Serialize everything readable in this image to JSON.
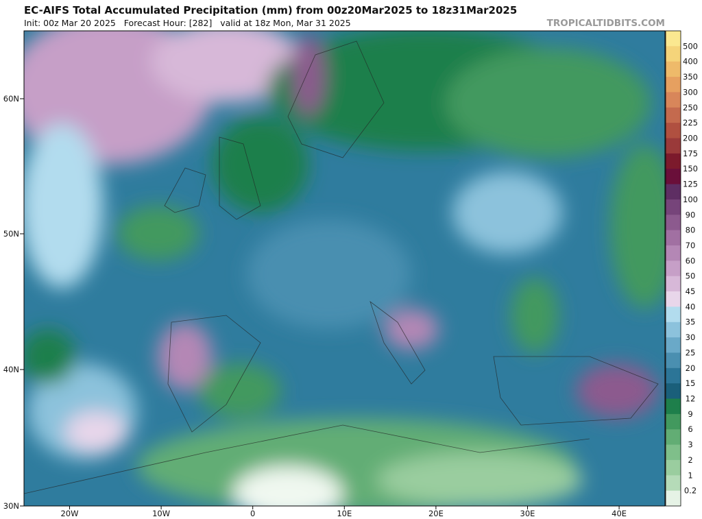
{
  "header": {
    "title": "EC-AIFS Total Accumulated Precipitation (mm) from 00z20Mar2025 to 18z31Mar2025",
    "subtitle": "Init: 00z Mar 20 2025   Forecast Hour: [282]   valid at 18z Mon, Mar 31 2025",
    "site": "TROPICALTIDBITS.COM"
  },
  "colorbar": {
    "labels": [
      500,
      400,
      350,
      300,
      250,
      225,
      200,
      175,
      150,
      125,
      100,
      90,
      80,
      70,
      60,
      50,
      45,
      40,
      35,
      30,
      25,
      20,
      15,
      12,
      9,
      6,
      3,
      2,
      1,
      0.2
    ]
  },
  "latitude_labels": [
    "60N",
    "50N",
    "40N",
    "30N"
  ],
  "longitude_labels": [
    "20W",
    "10W",
    "0",
    "10E",
    "20E",
    "30E",
    "40E"
  ]
}
